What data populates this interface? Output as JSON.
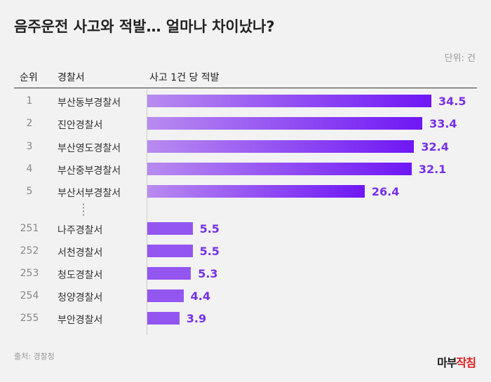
{
  "title": "음주운전 사고와 적발… 얼마나 차이났나?",
  "unit": "단위: 건",
  "headers": {
    "rank": "순위",
    "station": "경찰서",
    "metric": "사고 1건 당 적발"
  },
  "source": "출처: 경찰청",
  "logo": "마부작침",
  "colors": {
    "bar_start": "#b88bf0",
    "bar_end": "#6f17f5",
    "value_text": "#7630e8"
  },
  "chart_data": {
    "type": "bar",
    "orientation": "horizontal",
    "title": "음주운전 사고와 적발… 얼마나 차이났나?",
    "ylabel": "사고 1건 당 적발",
    "unit": "건",
    "rows": [
      {
        "rank": "1",
        "station": "부산동부경찰서",
        "value": 34.5
      },
      {
        "rank": "2",
        "station": "진안경찰서",
        "value": 33.4
      },
      {
        "rank": "3",
        "station": "부산영도경찰서",
        "value": 32.4
      },
      {
        "rank": "4",
        "station": "부산중부경찰서",
        "value": 32.1
      },
      {
        "rank": "5",
        "station": "부산서부경찰서",
        "value": 26.4
      },
      {
        "rank": "251",
        "station": "나주경찰서",
        "value": 5.5
      },
      {
        "rank": "252",
        "station": "서천경찰서",
        "value": 5.5
      },
      {
        "rank": "253",
        "station": "청도경찰서",
        "value": 5.3
      },
      {
        "rank": "254",
        "station": "청양경찰서",
        "value": 4.4
      },
      {
        "rank": "255",
        "station": "부안경찰서",
        "value": 3.9
      }
    ]
  }
}
